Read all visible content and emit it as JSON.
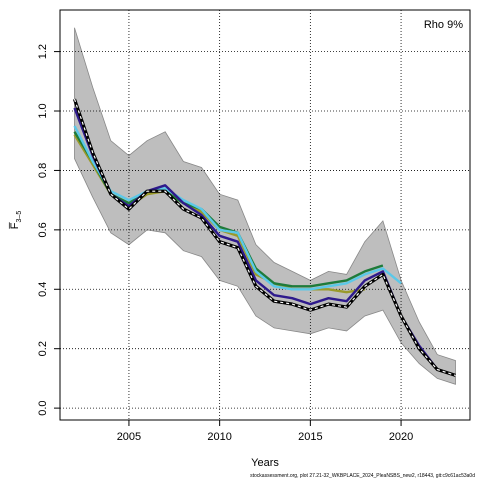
{
  "chart_data": {
    "type": "line",
    "annotation": "Rho 9%",
    "xlabel": "Years",
    "ylabel": "F̅",
    "ylabel_sub": "3–5",
    "footer": "stockassessment.org, plot 27.21-32_WKBPLACE_2024_PleaNSBS_new2, r18443, git:c9c61ac53a0d",
    "xlim": [
      2001.2,
      2023.8
    ],
    "ylim": [
      -0.04,
      1.34
    ],
    "xticks": [
      "2005",
      "2010",
      "2015",
      "2020"
    ],
    "xtick_values": [
      2005,
      2010,
      2015,
      2020
    ],
    "yticks": [
      "0.0",
      "0.2",
      "0.4",
      "0.6",
      "0.8",
      "1.0",
      "1.2"
    ],
    "ytick_values": [
      0.0,
      0.2,
      0.4,
      0.6,
      0.8,
      1.0,
      1.2
    ],
    "grid": true,
    "confidence_band": {
      "x": [
        2002,
        2003,
        2004,
        2005,
        2006,
        2007,
        2008,
        2009,
        2010,
        2011,
        2012,
        2013,
        2014,
        2015,
        2016,
        2017,
        2018,
        2019,
        2020,
        2021,
        2022,
        2023
      ],
      "upper": [
        1.28,
        1.08,
        0.9,
        0.85,
        0.9,
        0.93,
        0.83,
        0.81,
        0.72,
        0.7,
        0.55,
        0.49,
        0.46,
        0.43,
        0.46,
        0.45,
        0.56,
        0.63,
        0.43,
        0.29,
        0.18,
        0.16
      ],
      "lower": [
        0.84,
        0.71,
        0.59,
        0.55,
        0.6,
        0.59,
        0.53,
        0.51,
        0.43,
        0.41,
        0.31,
        0.27,
        0.26,
        0.25,
        0.27,
        0.26,
        0.31,
        0.33,
        0.22,
        0.15,
        0.1,
        0.08
      ]
    },
    "series": [
      {
        "color": "#000000",
        "style": "dashed-white",
        "x": [
          2002,
          2003,
          2004,
          2005,
          2006,
          2007,
          2008,
          2009,
          2010,
          2011,
          2012,
          2013,
          2014,
          2015,
          2016,
          2017,
          2018,
          2019,
          2020,
          2021,
          2022,
          2023
        ],
        "values": [
          1.04,
          0.86,
          0.72,
          0.67,
          0.73,
          0.73,
          0.67,
          0.64,
          0.56,
          0.54,
          0.41,
          0.36,
          0.35,
          0.33,
          0.35,
          0.34,
          0.41,
          0.45,
          0.31,
          0.2,
          0.13,
          0.11
        ]
      },
      {
        "color": "#2e1a8c",
        "style": "solid",
        "x": [
          2002,
          2003,
          2004,
          2005,
          2006,
          2007,
          2008,
          2009,
          2010,
          2011,
          2012,
          2013,
          2014,
          2015,
          2016,
          2017,
          2018,
          2019,
          2020,
          2021,
          2022
        ],
        "values": [
          1.01,
          0.85,
          0.72,
          0.68,
          0.73,
          0.75,
          0.69,
          0.65,
          0.58,
          0.56,
          0.43,
          0.38,
          0.37,
          0.35,
          0.37,
          0.36,
          0.43,
          0.46,
          0.31,
          0.21,
          0.13
        ]
      },
      {
        "color": "#5bc8e8",
        "style": "solid",
        "x": [
          2002,
          2003,
          2004,
          2005,
          2006,
          2007,
          2008,
          2009,
          2010,
          2011,
          2012,
          2013,
          2014,
          2015,
          2016,
          2017,
          2018,
          2019,
          2020
        ],
        "values": [
          0.95,
          0.83,
          0.73,
          0.7,
          0.73,
          0.74,
          0.7,
          0.67,
          0.6,
          0.59,
          0.46,
          0.41,
          0.4,
          0.4,
          0.41,
          0.42,
          0.45,
          0.47,
          0.42
        ]
      },
      {
        "color": "#1e7b3a",
        "style": "solid",
        "x": [
          2002,
          2003,
          2004,
          2005,
          2006,
          2007,
          2008,
          2009,
          2010,
          2011,
          2012,
          2013,
          2014,
          2015,
          2016,
          2017,
          2018,
          2019
        ],
        "values": [
          0.93,
          0.83,
          0.72,
          0.69,
          0.73,
          0.73,
          0.69,
          0.67,
          0.61,
          0.59,
          0.47,
          0.42,
          0.41,
          0.41,
          0.42,
          0.43,
          0.46,
          0.48
        ]
      },
      {
        "color": "#9a9a2a",
        "style": "solid",
        "x": [
          2002,
          2003,
          2004,
          2005,
          2006,
          2007,
          2008,
          2009,
          2010,
          2011,
          2012,
          2013,
          2014,
          2015,
          2016,
          2017,
          2018
        ],
        "values": [
          0.92,
          0.82,
          0.72,
          0.68,
          0.72,
          0.73,
          0.69,
          0.66,
          0.6,
          0.58,
          0.45,
          0.42,
          0.4,
          0.4,
          0.4,
          0.39,
          0.4
        ]
      }
    ]
  }
}
